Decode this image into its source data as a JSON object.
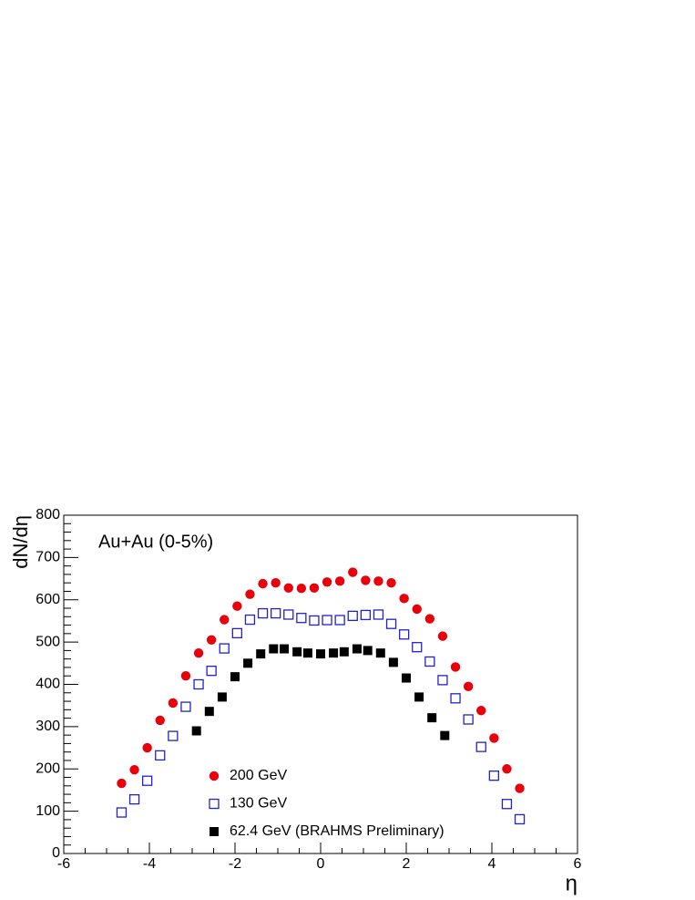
{
  "chart_data": {
    "type": "scatter",
    "annotation": "Au+Au (0-5%)",
    "y_label": "dN/dη",
    "x_label": "η",
    "xlim": [
      -6,
      6
    ],
    "xticks": [
      -6,
      -4,
      -2,
      0,
      2,
      4,
      6
    ],
    "ylim": [
      0,
      800
    ],
    "yticks": [
      0,
      100,
      200,
      300,
      400,
      500,
      600,
      700,
      800
    ],
    "legend": "bottom",
    "series": [
      {
        "name": "200 GeV",
        "color": "#e8000b",
        "marker": "circle",
        "x": [
          -4.65,
          -4.35,
          -4.05,
          -3.75,
          -3.45,
          -3.15,
          -2.85,
          -2.55,
          -2.25,
          -1.95,
          -1.65,
          -1.35,
          -1.05,
          -0.75,
          -0.45,
          -0.15,
          0.15,
          0.45,
          0.75,
          1.05,
          1.35,
          1.65,
          1.95,
          2.25,
          2.55,
          2.85,
          3.15,
          3.45,
          3.75,
          4.05,
          4.35,
          4.65
        ],
        "values": [
          166,
          198,
          250,
          315,
          356,
          420,
          474,
          505,
          553,
          585,
          613,
          638,
          640,
          628,
          627,
          628,
          642,
          644,
          665,
          646,
          644,
          640,
          603,
          578,
          555,
          514,
          441,
          395,
          338,
          273,
          200,
          154
        ]
      },
      {
        "name": "130 GeV",
        "color": "#2222cc",
        "marker": "open-square",
        "x": [
          -4.65,
          -4.35,
          -4.05,
          -3.75,
          -3.45,
          -3.15,
          -2.85,
          -2.55,
          -2.25,
          -1.95,
          -1.65,
          -1.35,
          -1.05,
          -0.75,
          -0.45,
          -0.15,
          0.15,
          0.45,
          0.75,
          1.05,
          1.35,
          1.65,
          1.95,
          2.25,
          2.55,
          2.85,
          3.15,
          3.45,
          3.75,
          4.05,
          4.35,
          4.65
        ],
        "values": [
          97,
          128,
          172,
          232,
          278,
          347,
          400,
          432,
          485,
          521,
          553,
          568,
          568,
          565,
          557,
          551,
          552,
          552,
          562,
          564,
          565,
          543,
          518,
          488,
          454,
          410,
          367,
          317,
          252,
          184,
          117,
          81
        ]
      },
      {
        "name": "62.4 GeV (BRAHMS Preliminary)",
        "color": "#000000",
        "marker": "square",
        "x": [
          -2.9,
          -2.6,
          -2.3,
          -2.0,
          -1.7,
          -1.4,
          -1.1,
          -0.85,
          -0.55,
          -0.3,
          0,
          0.3,
          0.55,
          0.85,
          1.1,
          1.4,
          1.7,
          2.0,
          2.3,
          2.6,
          2.9
        ],
        "values": [
          290,
          336,
          370,
          418,
          450,
          472,
          484,
          484,
          477,
          474,
          472,
          474,
          477,
          484,
          480,
          474,
          452,
          415,
          370,
          321,
          279
        ]
      }
    ]
  }
}
